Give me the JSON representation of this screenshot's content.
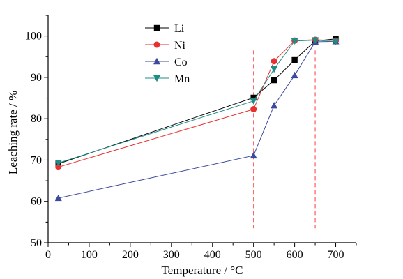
{
  "chart_data": {
    "type": "line",
    "xlabel": "Temperature / °C",
    "ylabel": "Leaching rate / %",
    "xlim": [
      0,
      750
    ],
    "ylim": [
      50,
      105
    ],
    "xticks": [
      0,
      100,
      200,
      300,
      400,
      500,
      600,
      700
    ],
    "yticks": [
      50,
      60,
      70,
      80,
      90,
      100
    ],
    "grid": false,
    "legend_position": "top-center",
    "reference_lines_x": [
      500,
      650
    ],
    "reference_line_color": "#ff6666",
    "series": [
      {
        "name": "Li",
        "color": "#000000",
        "marker": "square",
        "x": [
          25,
          500,
          550,
          600,
          650,
          700
        ],
        "y": [
          69.1,
          85.1,
          89.3,
          94.2,
          98.8,
          99.3
        ]
      },
      {
        "name": "Ni",
        "color": "#e8312f",
        "marker": "circle",
        "x": [
          25,
          500,
          550,
          600,
          650,
          700
        ],
        "y": [
          68.3,
          82.3,
          93.9,
          98.9,
          99.1,
          98.9
        ]
      },
      {
        "name": "Co",
        "color": "#3b4a9c",
        "marker": "triangle-up",
        "x": [
          25,
          500,
          550,
          600,
          650,
          700
        ],
        "y": [
          60.8,
          71.1,
          83.2,
          90.5,
          98.6,
          98.7
        ]
      },
      {
        "name": "Mn",
        "color": "#1f8c86",
        "marker": "triangle-down",
        "x": [
          25,
          500,
          550,
          600,
          650,
          700
        ],
        "y": [
          69.3,
          84.3,
          92.0,
          98.8,
          99.0,
          98.6
        ]
      }
    ]
  }
}
